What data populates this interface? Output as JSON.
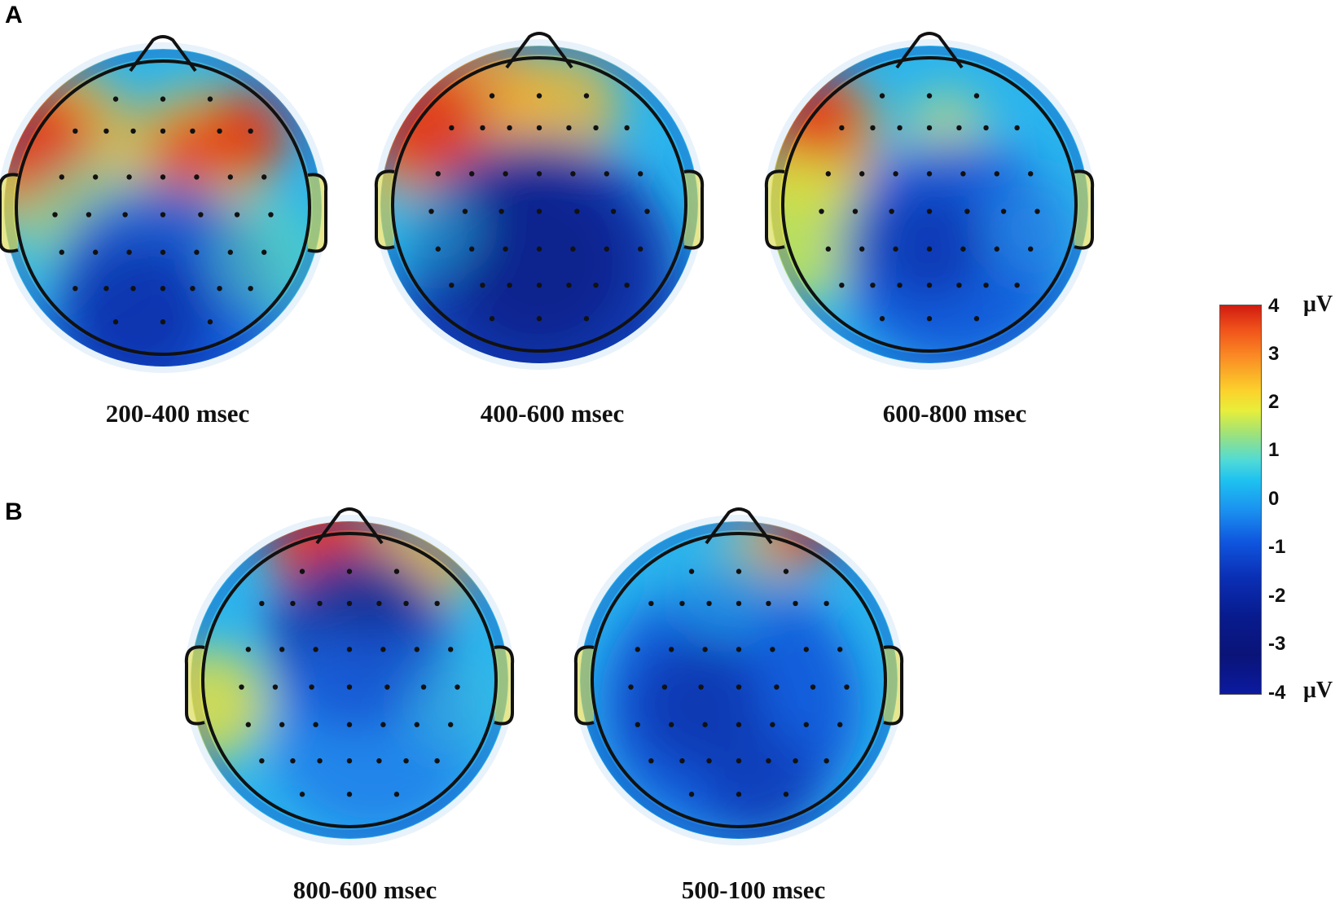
{
  "panels": {
    "a": {
      "label": "A"
    },
    "b": {
      "label": "B"
    }
  },
  "maps": [
    {
      "caption": "200-400 msec"
    },
    {
      "caption": "400-600 msec"
    },
    {
      "caption": "600-800 msec"
    },
    {
      "caption": "800-600 msec"
    },
    {
      "caption": "500-100 msec"
    }
  ],
  "colorbar": {
    "ticks": [
      "4",
      "3",
      "2",
      "1",
      "0",
      "-1",
      "-2",
      "-3",
      "-4"
    ],
    "unit_top": "μV",
    "unit_bottom": "μV",
    "colors": {
      "max": "#d01c10",
      "mid": "#1ec2f0",
      "min": "#0a1478"
    }
  }
}
